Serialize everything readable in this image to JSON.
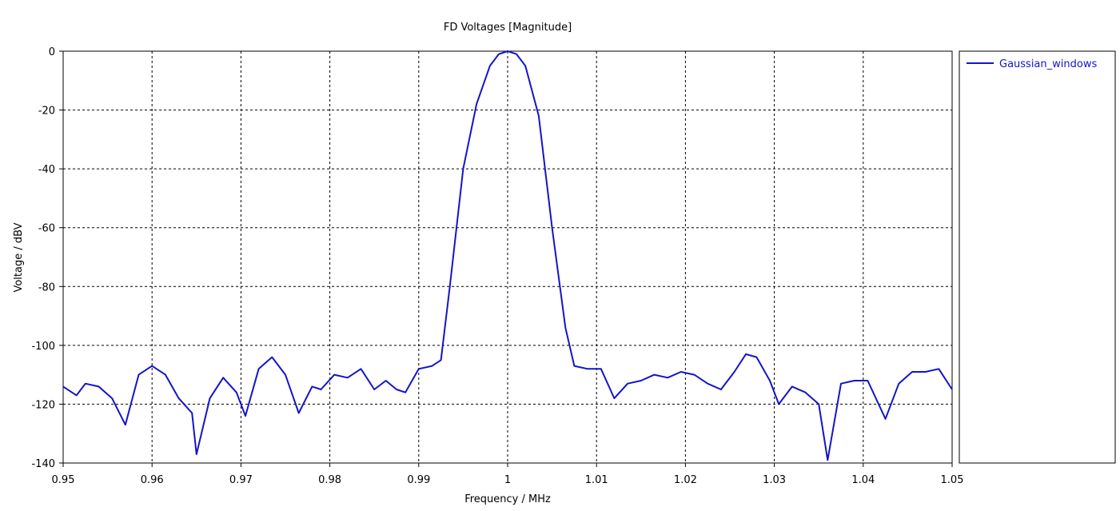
{
  "chart_data": {
    "type": "line",
    "title": "FD Voltages [Magnitude]",
    "xlabel": "Frequency / MHz",
    "ylabel": "Voltage / dBV",
    "xlim": [
      0.95,
      1.05
    ],
    "ylim": [
      -140,
      0
    ],
    "x_ticks": [
      "0.95",
      "0.96",
      "0.97",
      "0.98",
      "0.99",
      "1",
      "1.01",
      "1.02",
      "1.03",
      "1.04",
      "1.05"
    ],
    "y_ticks": [
      "0",
      "-20",
      "-40",
      "-60",
      "-80",
      "-100",
      "-120",
      "-140"
    ],
    "grid": true,
    "legend_position": "right",
    "series": [
      {
        "name": "Gaussian_windows",
        "color": "#1414c8",
        "x": [
          0.95,
          0.9515,
          0.9525,
          0.954,
          0.9555,
          0.957,
          0.9585,
          0.96,
          0.9615,
          0.963,
          0.9645,
          0.965,
          0.9665,
          0.968,
          0.9695,
          0.9705,
          0.972,
          0.9735,
          0.975,
          0.9765,
          0.978,
          0.979,
          0.9805,
          0.982,
          0.9835,
          0.985,
          0.9863,
          0.9875,
          0.9885,
          0.99,
          0.9915,
          0.9925,
          0.9935,
          0.995,
          0.9965,
          0.998,
          0.999,
          1.0,
          1.001,
          1.002,
          1.0035,
          1.005,
          1.0065,
          1.0075,
          1.009,
          1.0105,
          1.012,
          1.0135,
          1.015,
          1.0165,
          1.018,
          1.0195,
          1.021,
          1.0225,
          1.024,
          1.0255,
          1.0268,
          1.028,
          1.0295,
          1.0305,
          1.032,
          1.0335,
          1.035,
          1.036,
          1.0375,
          1.039,
          1.0405,
          1.0425,
          1.044,
          1.0455,
          1.047,
          1.0485,
          1.05
        ],
        "y": [
          -114,
          -117,
          -113,
          -114,
          -118,
          -127,
          -110,
          -107,
          -110,
          -118,
          -123,
          -137,
          -118,
          -111,
          -116,
          -124,
          -108,
          -104,
          -110,
          -123,
          -114,
          -115,
          -110,
          -111,
          -108,
          -115,
          -112,
          -115,
          -116,
          -108,
          -107,
          -105,
          -80,
          -40,
          -18,
          -5,
          -1,
          0,
          -1,
          -5,
          -22,
          -60,
          -94,
          -107,
          -108,
          -108,
          -118,
          -113,
          -112,
          -110,
          -111,
          -109,
          -110,
          -113,
          -115,
          -109,
          -103,
          -104,
          -112,
          -120,
          -114,
          -116,
          -120,
          -139,
          -113,
          -112,
          -112,
          -125,
          -113,
          -109,
          -109,
          -108,
          -115
        ]
      }
    ]
  }
}
